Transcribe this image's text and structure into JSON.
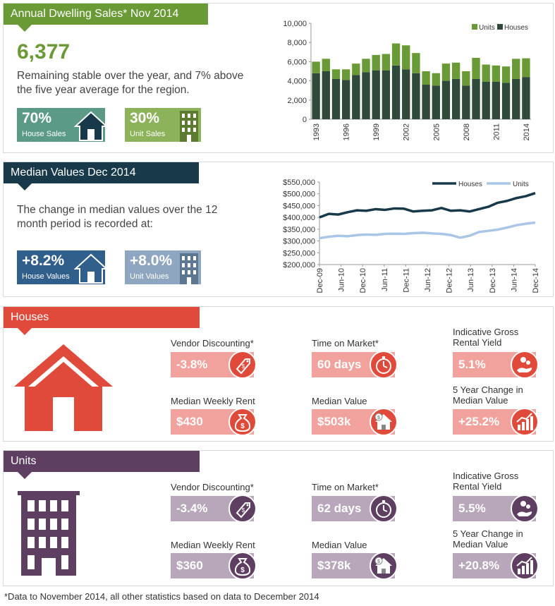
{
  "sales": {
    "title": "Annual Dwelling Sales* Nov 2014",
    "big_number": "6,377",
    "description": "Remaining stable over the year, and 7% above the five year average for the region.",
    "house_pct": "70%",
    "house_label": "House Sales",
    "unit_pct": "30%",
    "unit_label": "Unit Sales",
    "colors": {
      "banner": "#6a9a35",
      "house_tile": "#5a9a86",
      "unit_tile": "#8db35a",
      "units_bar": "#6a9a35",
      "houses_bar": "#2f4a3a"
    }
  },
  "median": {
    "title": "Median Values Dec 2014",
    "description": "The change in median values over the 12 month period is  recorded at:",
    "house_pct": "+8.2%",
    "house_label": "House Values",
    "unit_pct": "+8.0%",
    "unit_label": "Unit Values",
    "colors": {
      "banner": "#17394a",
      "house_tile": "#2f5f8a",
      "unit_tile": "#8ea6bf",
      "houses_line": "#17394a",
      "units_line": "#a9c6e6"
    }
  },
  "houses": {
    "title": "Houses",
    "colors": {
      "banner": "#e04a3a",
      "box": "#f1a29c",
      "circle": "#e04a3a"
    },
    "stats": [
      {
        "label": "Vendor Discounting*",
        "value": "-3.8%",
        "icon": "price-tag-icon"
      },
      {
        "label": "Time on Market*",
        "value": "60 days",
        "icon": "stopwatch-icon"
      },
      {
        "label": "Indicative Gross Rental Yield",
        "value": "5.1%",
        "icon": "hand-coins-icon"
      },
      {
        "label": "Median Weekly Rent",
        "value": "$430",
        "icon": "money-bag-icon"
      },
      {
        "label": "Median Value",
        "value": "$503k",
        "icon": "house-dollar-icon"
      },
      {
        "label": "5 Year Change in Median Value",
        "value": "+25.2%",
        "icon": "bar-chart-up-icon"
      }
    ]
  },
  "units": {
    "title": "Units",
    "colors": {
      "banner": "#5e3f62",
      "box": "#b8a6ba",
      "circle": "#5e3f62"
    },
    "stats": [
      {
        "label": "Vendor Discounting*",
        "value": "-3.4%",
        "icon": "price-tag-icon"
      },
      {
        "label": "Time on Market*",
        "value": "62 days",
        "icon": "stopwatch-icon"
      },
      {
        "label": "Indicative Gross Rental Yield",
        "value": "5.5%",
        "icon": "hand-coins-icon"
      },
      {
        "label": "Median Weekly Rent",
        "value": "$360",
        "icon": "money-bag-icon"
      },
      {
        "label": "Median Value",
        "value": "$378k",
        "icon": "house-dollar-icon"
      },
      {
        "label": "5 Year Change in Median Value",
        "value": "+20.8%",
        "icon": "bar-chart-up-icon"
      }
    ]
  },
  "footnote": "*Data to November 2014, all other statistics based on data to December 2014",
  "chart_data": [
    {
      "type": "bar",
      "stacked": true,
      "categories": [
        "1993",
        "1994",
        "1995",
        "1996",
        "1997",
        "1998",
        "1999",
        "2000",
        "2001",
        "2002",
        "2003",
        "2004",
        "2005",
        "2006",
        "2007",
        "2008",
        "2009",
        "2010",
        "2011",
        "2012",
        "2013",
        "2014"
      ],
      "x_tick_labels": [
        "1993",
        "1996",
        "1999",
        "2002",
        "2005",
        "2008",
        "2011",
        "2014"
      ],
      "series": [
        {
          "name": "Houses",
          "values": [
            4800,
            5000,
            4200,
            4100,
            4600,
            4900,
            5100,
            5100,
            5600,
            5200,
            4800,
            3600,
            3500,
            4000,
            4200,
            3500,
            4200,
            3900,
            3900,
            3800,
            4200,
            4400
          ]
        },
        {
          "name": "Units",
          "values": [
            1200,
            1300,
            1000,
            1100,
            1200,
            1400,
            1600,
            1700,
            2300,
            2500,
            2100,
            1400,
            1300,
            1800,
            1700,
            1500,
            2200,
            1800,
            1700,
            1700,
            2100,
            1950
          ]
        }
      ],
      "ylim": [
        0,
        10000
      ],
      "y_ticks": [
        "0",
        "2,000",
        "4,000",
        "6,000",
        "8,000",
        "10,000"
      ],
      "legend": "top-right",
      "grid": false
    },
    {
      "type": "line",
      "x_tick_labels": [
        "Dec-09",
        "Jun-10",
        "Dec-10",
        "Jun-11",
        "Dec-11",
        "Jun-12",
        "Dec-12",
        "Jun-13",
        "Dec-13",
        "Jun-14",
        "Dec-14"
      ],
      "series": [
        {
          "name": "Houses",
          "values": [
            400000,
            415000,
            412000,
            422000,
            430000,
            428000,
            435000,
            432000,
            438000,
            437000,
            425000,
            428000,
            430000,
            440000,
            428000,
            430000,
            425000,
            435000,
            445000,
            462000,
            470000,
            482000,
            490000,
            503000
          ]
        },
        {
          "name": "Units",
          "values": [
            312000,
            318000,
            322000,
            320000,
            325000,
            327000,
            326000,
            330000,
            331000,
            330000,
            333000,
            335000,
            332000,
            330000,
            325000,
            314000,
            322000,
            338000,
            343000,
            348000,
            357000,
            367000,
            373000,
            378000
          ]
        }
      ],
      "ylim": [
        200000,
        550000
      ],
      "y_ticks": [
        "$200,000",
        "$250,000",
        "$300,000",
        "$350,000",
        "$400,000",
        "$450,000",
        "$500,000",
        "$550,000"
      ],
      "legend": "top-right",
      "grid": false
    }
  ]
}
